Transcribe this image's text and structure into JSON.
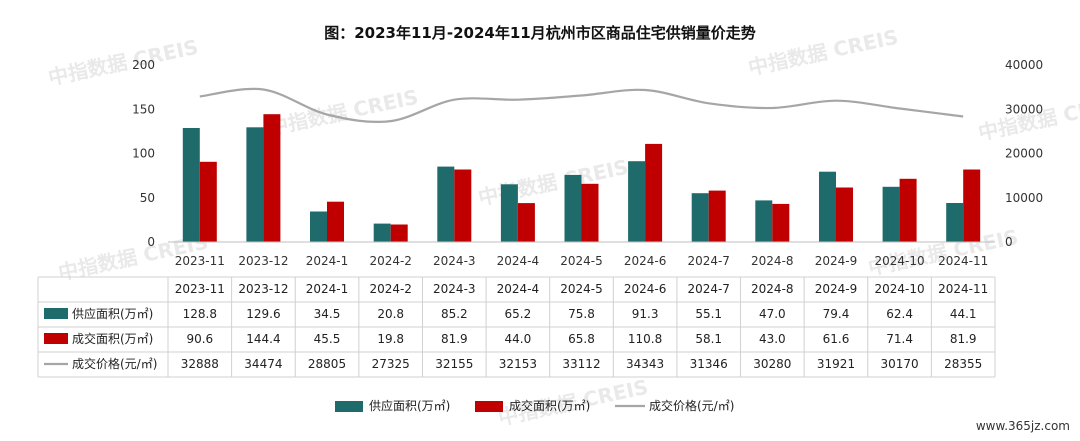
{
  "chart_data": {
    "type": "bar",
    "title": "图：2023年11月-2024年11月杭州市区商品住宅供销量价走势",
    "categories": [
      "2023-11",
      "2023-12",
      "2024-1",
      "2024-2",
      "2024-3",
      "2024-4",
      "2024-5",
      "2024-6",
      "2024-7",
      "2024-8",
      "2024-9",
      "2024-10",
      "2024-11"
    ],
    "ylim": [
      0,
      200
    ],
    "y_ticks": [
      0,
      50,
      100,
      150,
      200
    ],
    "y2lim": [
      0,
      40000
    ],
    "y2_ticks": [
      0,
      10000,
      20000,
      30000,
      40000
    ],
    "grid": false,
    "legend_position": "bottom",
    "series": [
      {
        "name": "供应面积(万㎡)",
        "kind": "bar",
        "axis": "left",
        "color": "#1f6b6b",
        "values": [
          128.8,
          129.6,
          34.5,
          20.8,
          85.2,
          65.2,
          75.8,
          91.3,
          55.1,
          47.0,
          79.4,
          62.4,
          44.1
        ]
      },
      {
        "name": "成交面积(万㎡)",
        "kind": "bar",
        "axis": "left",
        "color": "#c00000",
        "values": [
          90.6,
          144.4,
          45.5,
          19.8,
          81.9,
          44.0,
          65.8,
          110.8,
          58.1,
          43.0,
          61.6,
          71.4,
          81.9
        ]
      },
      {
        "name": "成交价格(元/㎡)",
        "kind": "line",
        "axis": "right",
        "color": "#a6a6a6",
        "values": [
          32888,
          34474,
          28805,
          27325,
          32155,
          32153,
          33112,
          34343,
          31346,
          30280,
          31921,
          30170,
          28355
        ]
      }
    ],
    "table": {
      "rows": [
        {
          "label": "供应面积(万㎡)",
          "cells": [
            "128.8",
            "129.6",
            "34.5",
            "20.8",
            "85.2",
            "65.2",
            "75.8",
            "91.3",
            "55.1",
            "47.0",
            "79.4",
            "62.4",
            "44.1"
          ]
        },
        {
          "label": "成交面积(万㎡)",
          "cells": [
            "90.6",
            "144.4",
            "45.5",
            "19.8",
            "81.9",
            "44.0",
            "65.8",
            "110.8",
            "58.1",
            "43.0",
            "61.6",
            "71.4",
            "81.9"
          ]
        },
        {
          "label": "成交价格(元/㎡)",
          "cells": [
            "32888",
            "34474",
            "28805",
            "27325",
            "32155",
            "32153",
            "33112",
            "34343",
            "31346",
            "30280",
            "31921",
            "30170",
            "28355"
          ]
        }
      ]
    }
  },
  "watermark": "中指数据 CREIS",
  "site_mark": "www.365jz.com"
}
